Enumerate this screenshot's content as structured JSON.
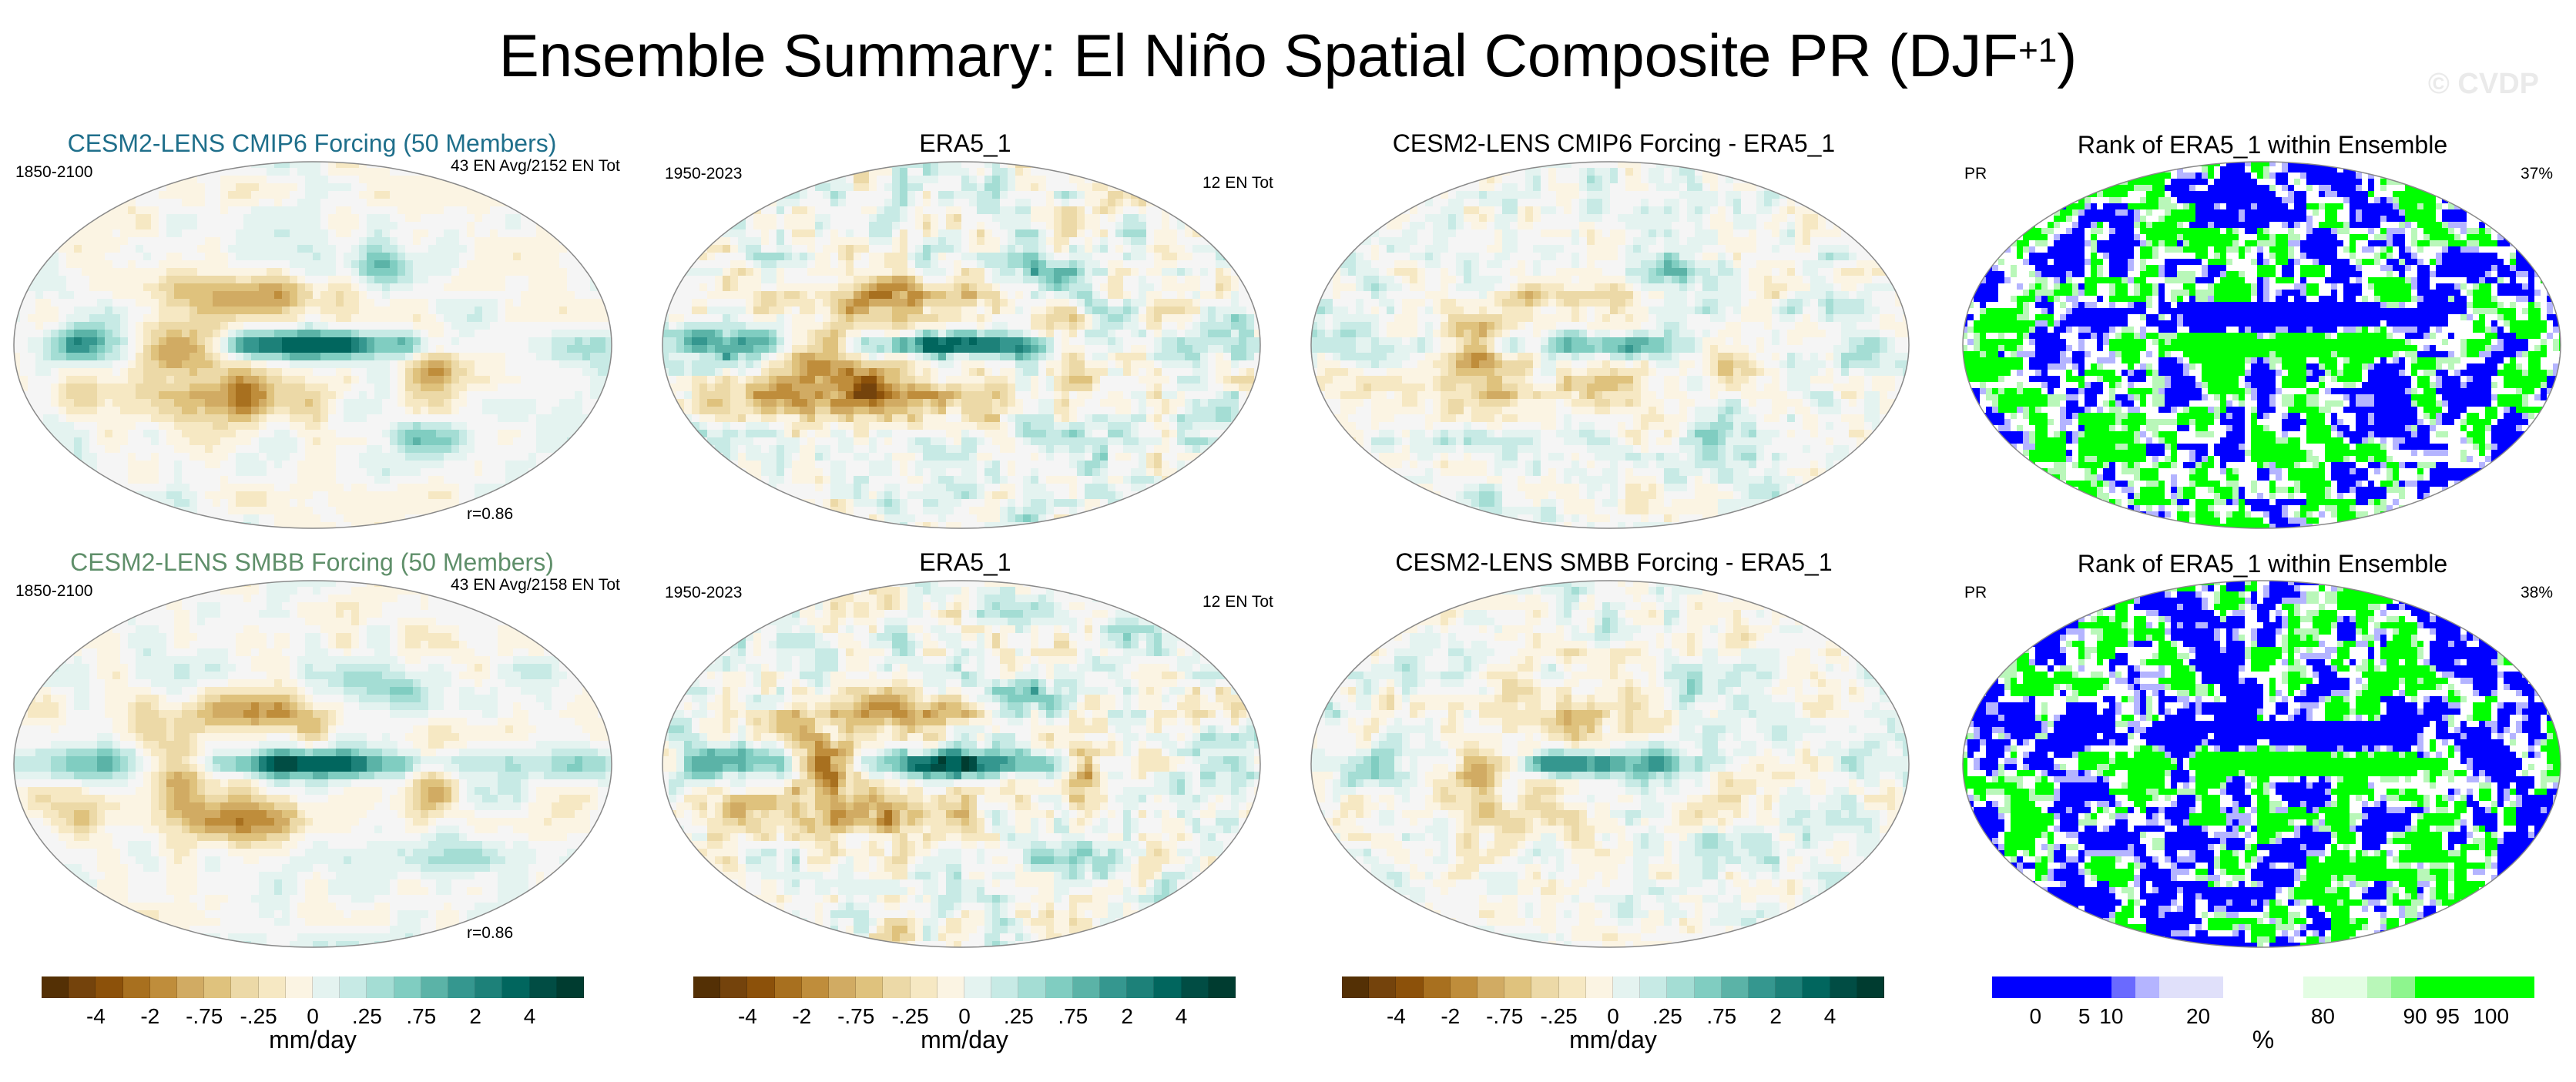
{
  "title": "Ensemble Summary: El Niño Spatial Composite PR (DJF",
  "title_sup": "+1",
  "title_close": ")",
  "watermark": "© CVDP",
  "colors": {
    "cesm_cmip6_title": "#1f6f8b",
    "cesm_smbb_title": "#5f8f6a",
    "pr_palette": [
      "#543005",
      "#74430c",
      "#8c510a",
      "#a8701f",
      "#bf8d3b",
      "#d1ab63",
      "#dfc27d",
      "#ecd9a7",
      "#f6e8c3",
      "#fbf4e3",
      "#f5f5f5",
      "#e4f3f0",
      "#c7eae5",
      "#a4ddd4",
      "#80cdc1",
      "#5bb3a7",
      "#35978f",
      "#1d8179",
      "#01665e",
      "#014d44",
      "#003c30"
    ],
    "rank_palette": [
      "#0000ff",
      "#6a6aff",
      "#b4b4ff",
      "#e0e0fa",
      "#ffffff",
      "#e3fde3",
      "#b9f7b9",
      "#8ef58e",
      "#00ff00"
    ]
  },
  "chart_data": [
    {
      "type": "heatmap",
      "id": "r1c1",
      "title": "CESM2-LENS CMIP6 Forcing (50 Members)",
      "left_label": "1850-2100",
      "right_label": "43 EN Avg/2152 EN Tot",
      "footer": "r=0.86",
      "units": "mm/day"
    },
    {
      "type": "heatmap",
      "id": "r1c2",
      "title": "ERA5_1",
      "left_label": "1950-2023",
      "right_label": "12 EN Tot",
      "units": "mm/day"
    },
    {
      "type": "heatmap",
      "id": "r1c3",
      "title": "CESM2-LENS CMIP6 Forcing - ERA5_1",
      "units": "mm/day"
    },
    {
      "type": "heatmap",
      "id": "r1c4",
      "title": "Rank of ERA5_1 within Ensemble",
      "left_label": "PR",
      "right_label": "37%",
      "units": "%"
    },
    {
      "type": "heatmap",
      "id": "r2c1",
      "title": "CESM2-LENS SMBB Forcing (50 Members)",
      "left_label": "1850-2100",
      "right_label": "43 EN Avg/2158 EN Tot",
      "footer": "r=0.86",
      "units": "mm/day"
    },
    {
      "type": "heatmap",
      "id": "r2c2",
      "title": "ERA5_1",
      "left_label": "1950-2023",
      "right_label": "12 EN Tot",
      "units": "mm/day"
    },
    {
      "type": "heatmap",
      "id": "r2c3",
      "title": "CESM2-LENS SMBB Forcing - ERA5_1",
      "units": "mm/day"
    },
    {
      "type": "heatmap",
      "id": "r2c4",
      "title": "Rank of ERA5_1 within Ensemble",
      "left_label": "PR",
      "right_label": "38%",
      "units": "%"
    }
  ],
  "colorbars": {
    "pr": {
      "ticks": [
        "-4",
        "-2",
        "-.75",
        "-.25",
        "0",
        ".25",
        ".75",
        "2",
        "4"
      ],
      "units": "mm/day"
    },
    "rank": {
      "ticks": [
        "0",
        "5",
        "10",
        "20",
        "80",
        "90",
        "95",
        "100"
      ],
      "units": "%"
    }
  }
}
